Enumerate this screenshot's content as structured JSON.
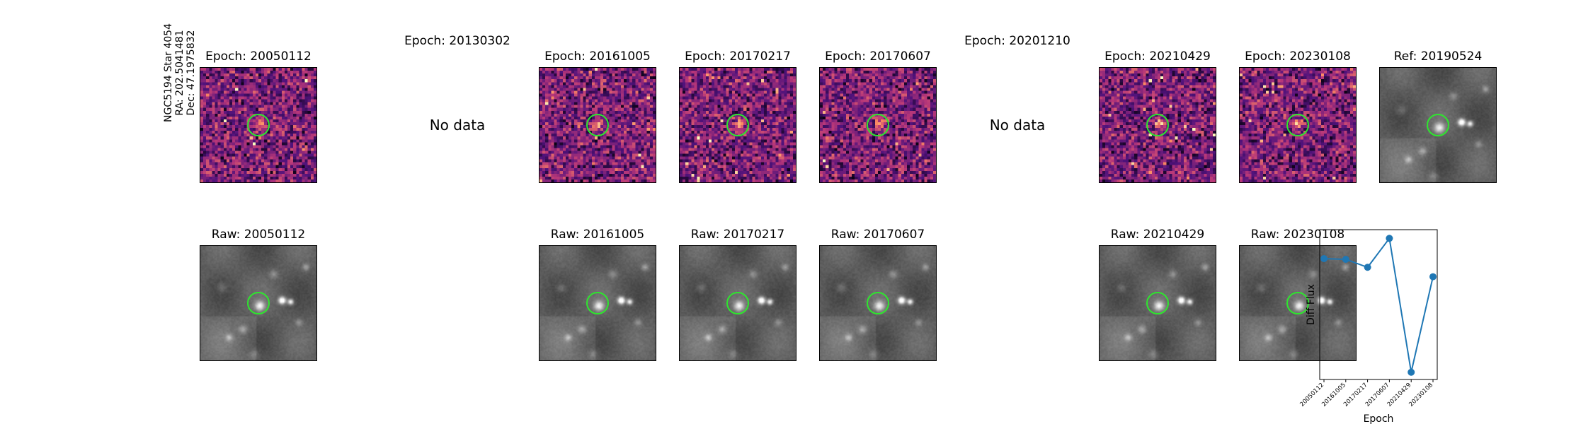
{
  "star": {
    "name": "NGC5194 Star 4054",
    "ra": "RA: 202.5041481",
    "dec": "Dec: 47.1975832"
  },
  "diff_panels": [
    {
      "title": "Epoch: 20050112",
      "has_data": true
    },
    {
      "title": "Epoch: 20130302",
      "has_data": false,
      "message": "No data"
    },
    {
      "title": "Epoch: 20161005",
      "has_data": true
    },
    {
      "title": "Epoch: 20170217",
      "has_data": true
    },
    {
      "title": "Epoch: 20170607",
      "has_data": true
    },
    {
      "title": "Epoch: 20201210",
      "has_data": false,
      "message": "No data"
    },
    {
      "title": "Epoch: 20210429",
      "has_data": true
    },
    {
      "title": "Epoch: 20230108",
      "has_data": true
    },
    {
      "title": "Ref: 20190524",
      "has_data": true,
      "kind": "reference"
    }
  ],
  "raw_panels": [
    {
      "title": "Raw: 20050112"
    },
    {
      "title": "Raw: 20161005"
    },
    {
      "title": "Raw: 20170217"
    },
    {
      "title": "Raw: 20170607"
    },
    {
      "title": "Raw: 20210429"
    },
    {
      "title": "Raw: 20230108"
    }
  ],
  "colors": {
    "diff_cmap": "magma",
    "raw_cmap": "gray",
    "aperture": "#2ee62e",
    "line": "#1f77b4"
  },
  "chart_data": {
    "type": "line",
    "categories": [
      "20050112",
      "20161005",
      "20170217",
      "20170607",
      "20210429",
      "20230108"
    ],
    "values": [
      0.72,
      0.71,
      0.6,
      1.0,
      -0.85,
      0.47
    ],
    "xlabel": "Epoch",
    "ylabel": "Diff Flux",
    "ylim": [
      -0.95,
      1.12
    ],
    "grid": false
  }
}
